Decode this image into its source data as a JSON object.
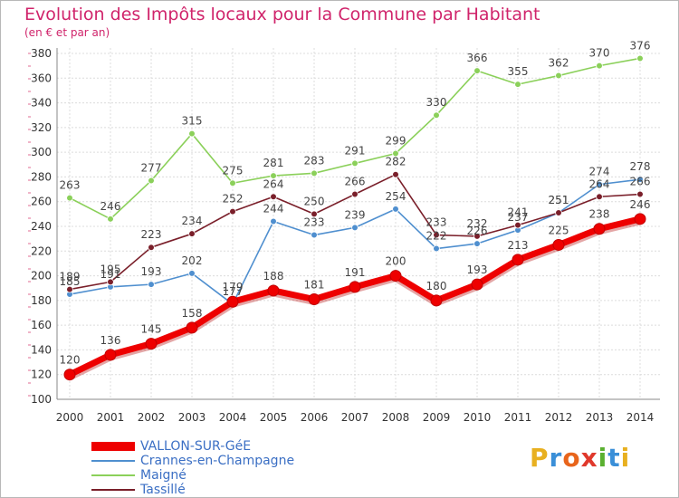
{
  "header": {
    "title": "Evolution des Impôts locaux pour la Commune par Habitant",
    "subtitle": "(en € et par an)"
  },
  "logo": {
    "text": "Proxiti",
    "letters": [
      "P",
      "r",
      "o",
      "x",
      "i",
      "t",
      "i"
    ],
    "colors": [
      "#e8b020",
      "#3a8fd8",
      "#e8651c",
      "#e0392c",
      "#5ab030",
      "#3a8fd8",
      "#e8b020"
    ]
  },
  "chart_data": {
    "type": "line",
    "title": "Evolution des Impôts locaux pour la Commune par Habitant",
    "subtitle": "(en € et par an)",
    "xlabel": "",
    "ylabel": "",
    "x": [
      "2000",
      "2001",
      "2002",
      "2003",
      "2004",
      "2005",
      "2006",
      "2007",
      "2008",
      "2009",
      "2010",
      "2011",
      "2012",
      "2013",
      "2014"
    ],
    "ylim": [
      100,
      380
    ],
    "yticks": [
      100,
      120,
      140,
      160,
      180,
      200,
      220,
      240,
      260,
      280,
      300,
      320,
      340,
      360,
      380
    ],
    "grid": true,
    "legend_position": "bottom-left",
    "series": [
      {
        "name": "VALLON-SUR-GéE",
        "color": "#ee0000",
        "values": [
          120,
          136,
          145,
          158,
          179,
          188,
          181,
          191,
          200,
          180,
          193,
          213,
          225,
          238,
          246
        ]
      },
      {
        "name": "Crannes-en-Champagne",
        "color": "#4f8fcf",
        "values": [
          185,
          191,
          193,
          202,
          177,
          244,
          233,
          239,
          254,
          222,
          226,
          237,
          251,
          274,
          278
        ]
      },
      {
        "name": "Maigné",
        "color": "#8bd05a",
        "values": [
          263,
          246,
          277,
          315,
          275,
          281,
          283,
          291,
          299,
          330,
          366,
          355,
          362,
          370,
          376
        ]
      },
      {
        "name": "Tassillé",
        "color": "#7a1f2a",
        "values": [
          189,
          195,
          223,
          234,
          252,
          264,
          250,
          266,
          282,
          233,
          232,
          241,
          251,
          264,
          266
        ]
      }
    ],
    "data_labels": [
      [
        "120",
        "136",
        "145",
        "158",
        "179",
        "188",
        "181",
        "191",
        "200",
        "180",
        "193",
        "213",
        "225",
        "238",
        "246"
      ],
      [
        "185",
        "191",
        "193",
        "202",
        "177",
        "244",
        "233",
        "239",
        "254",
        "222",
        "226",
        "237",
        "251",
        "274",
        "278"
      ],
      [
        "263",
        "246",
        "277",
        "315",
        "275",
        "281",
        "283",
        "291",
        "299",
        "330",
        "366",
        "355",
        "362",
        "370",
        "376"
      ],
      [
        "189",
        "195",
        "223",
        "234",
        "252",
        "264",
        "250",
        "266",
        "282",
        "233",
        "232",
        "241",
        "251",
        "264",
        "266"
      ]
    ]
  }
}
